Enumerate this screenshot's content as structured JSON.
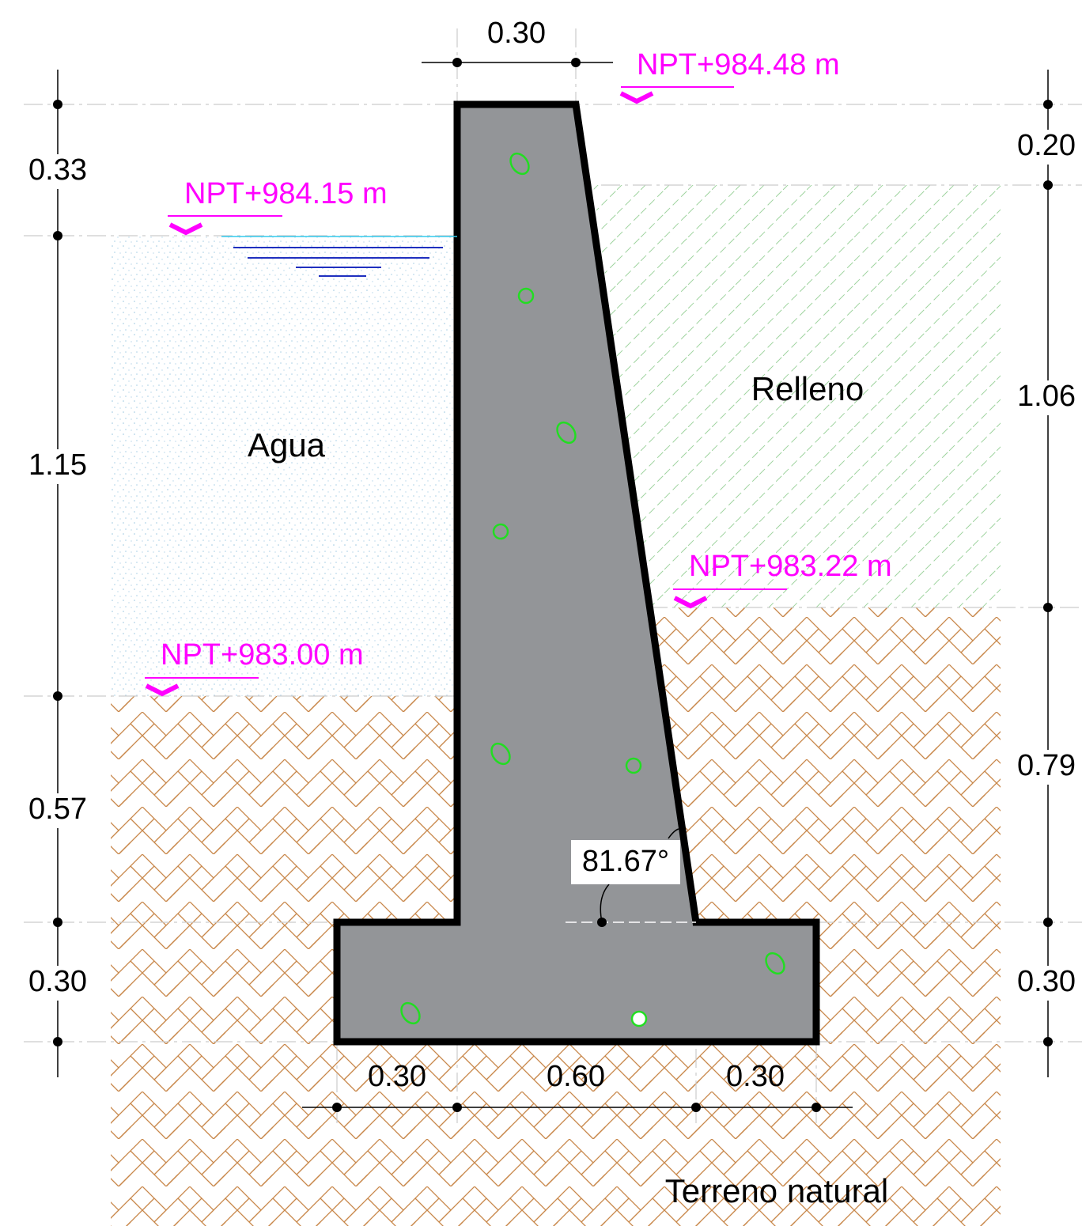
{
  "dimensions": {
    "top": "0.30",
    "left": [
      "0.33",
      "1.15",
      "0.57",
      "0.30"
    ],
    "right": [
      "0.20",
      "1.06",
      "0.79",
      "0.30"
    ],
    "bottom": [
      "0.30",
      "0.60",
      "0.30"
    ]
  },
  "levels": [
    "NPT+984.48 m",
    "NPT+984.15 m",
    "NPT+983.22 m",
    "NPT+983.00 m"
  ],
  "regions": {
    "water": "Agua",
    "fill": "Relleno",
    "ground": "Terreno natural"
  },
  "angle": "81.67°"
}
